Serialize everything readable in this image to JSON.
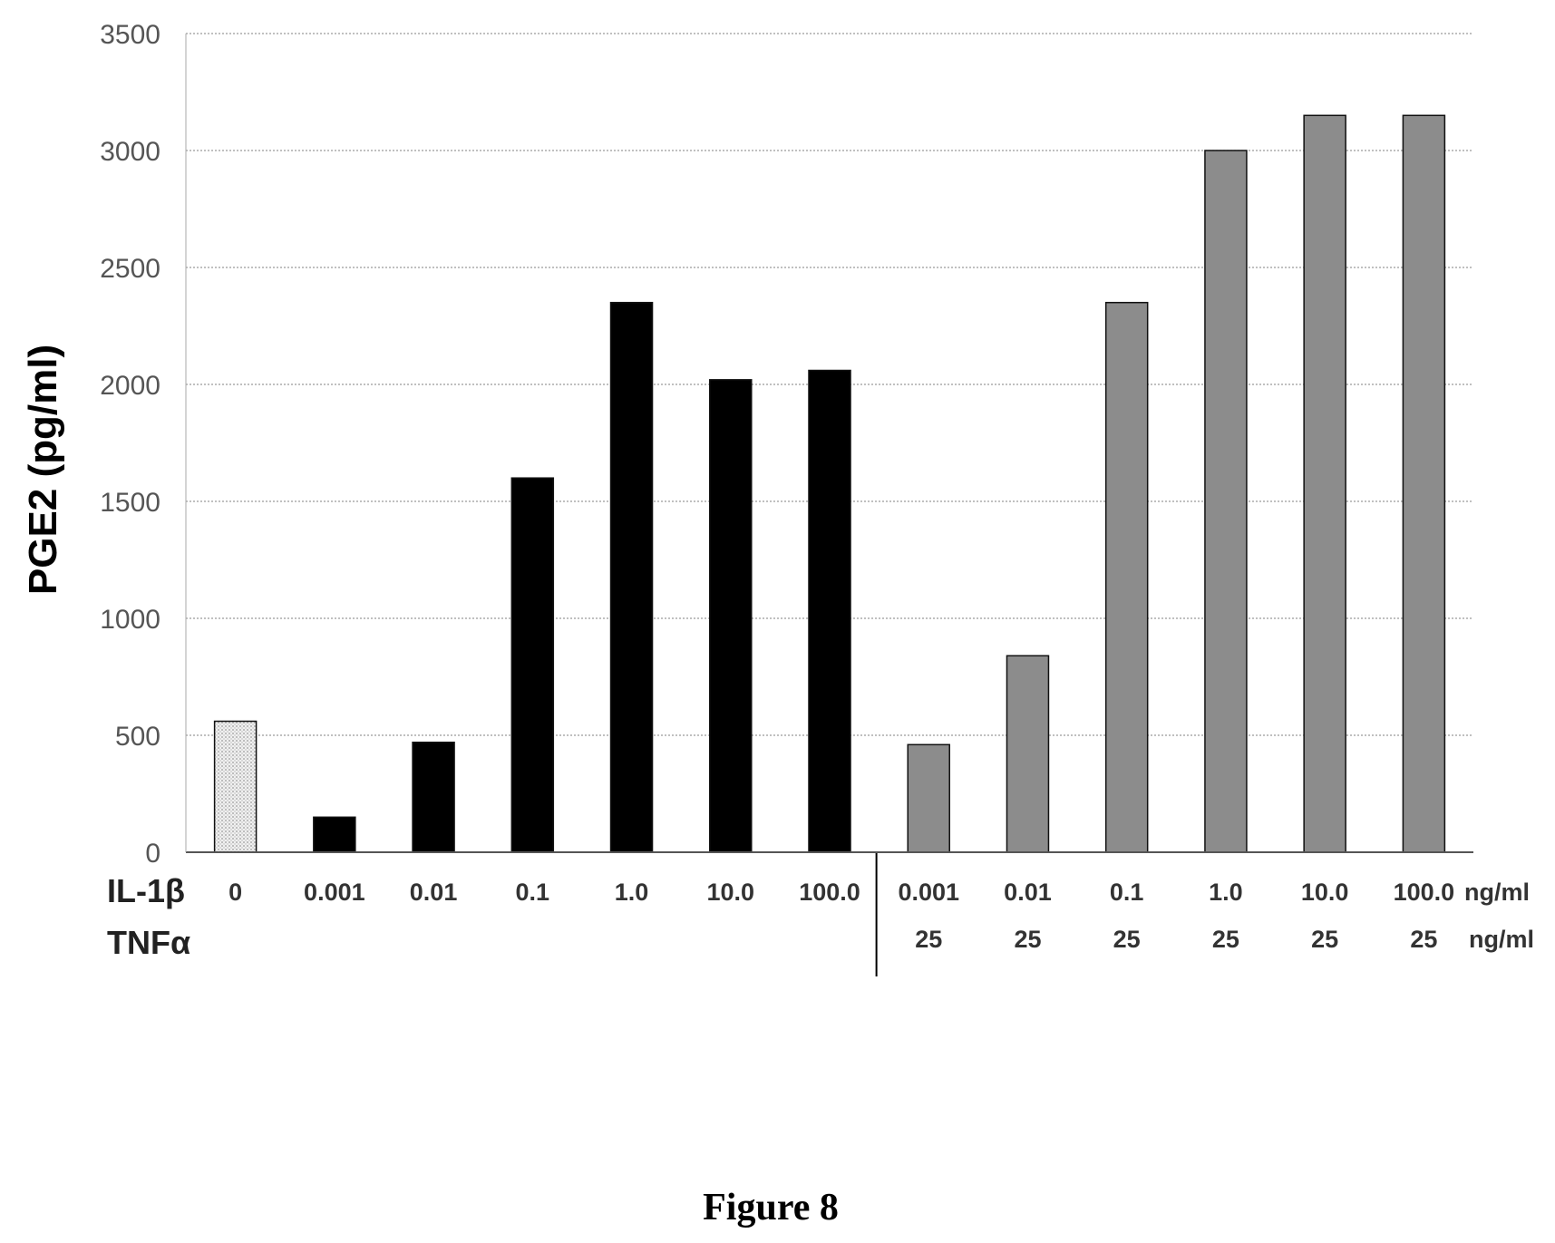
{
  "chart_data": {
    "type": "bar",
    "ylabel": "PGE2 (pg/ml)",
    "ylim": [
      0,
      3500
    ],
    "yticks": [
      0,
      500,
      1000,
      1500,
      2000,
      2500,
      3000,
      3500
    ],
    "grid": true,
    "row_labels": {
      "il1b": "IL-1β",
      "tnfa": "TNFα",
      "unit_il1b": "ng/ml",
      "unit_tnfa": "ng/ml"
    },
    "categories": [
      {
        "il1b": "0",
        "tnfa": "",
        "value": 560,
        "color": "#e6e6e6",
        "pattern": "dots"
      },
      {
        "il1b": "0.001",
        "tnfa": "",
        "value": 150,
        "color": "#000000"
      },
      {
        "il1b": "0.01",
        "tnfa": "",
        "value": 470,
        "color": "#000000"
      },
      {
        "il1b": "0.1",
        "tnfa": "",
        "value": 1600,
        "color": "#000000"
      },
      {
        "il1b": "1.0",
        "tnfa": "",
        "value": 2350,
        "color": "#000000"
      },
      {
        "il1b": "10.0",
        "tnfa": "",
        "value": 2020,
        "color": "#000000"
      },
      {
        "il1b": "100.0",
        "tnfa": "",
        "value": 2060,
        "color": "#000000"
      },
      {
        "il1b": "0.001",
        "tnfa": "25",
        "value": 460,
        "color": "#8c8c8c"
      },
      {
        "il1b": "0.01",
        "tnfa": "25",
        "value": 840,
        "color": "#8c8c8c"
      },
      {
        "il1b": "0.1",
        "tnfa": "25",
        "value": 2350,
        "color": "#8c8c8c"
      },
      {
        "il1b": "1.0",
        "tnfa": "25",
        "value": 3000,
        "color": "#8c8c8c"
      },
      {
        "il1b": "10.0",
        "tnfa": "25",
        "value": 3150,
        "color": "#8c8c8c"
      },
      {
        "il1b": "100.0",
        "tnfa": "25",
        "value": 3150,
        "color": "#8c8c8c"
      }
    ]
  },
  "caption": "Figure 8"
}
